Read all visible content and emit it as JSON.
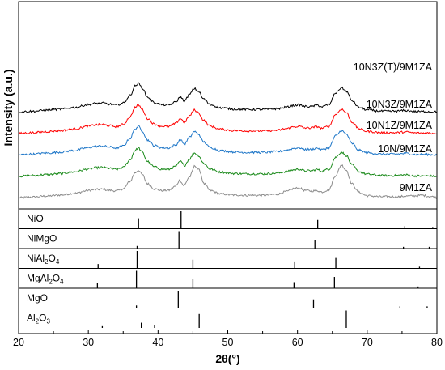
{
  "chart_data": {
    "type": "line",
    "title": "",
    "xlabel": "2θ(°)",
    "ylabel": "Intensity (a.u.)",
    "xlim": [
      20,
      80
    ],
    "xticks": [
      20,
      30,
      40,
      50,
      60,
      70,
      80
    ],
    "grid": false,
    "legend": "none",
    "series": [
      {
        "name": "10N3Z(T)/9M1ZA",
        "color": "#000000",
        "offset": 4,
        "points": [
          [
            20,
            0.18
          ],
          [
            22,
            0.22
          ],
          [
            24,
            0.28
          ],
          [
            26,
            0.34
          ],
          [
            28,
            0.44
          ],
          [
            30,
            0.6
          ],
          [
            31,
            0.68
          ],
          [
            32,
            0.7
          ],
          [
            33,
            0.64
          ],
          [
            34,
            0.58
          ],
          [
            35,
            0.7
          ],
          [
            36,
            1.15
          ],
          [
            36.7,
            1.7
          ],
          [
            37.2,
            1.85
          ],
          [
            37.7,
            1.6
          ],
          [
            38.5,
            1.05
          ],
          [
            39.5,
            0.72
          ],
          [
            40.5,
            0.6
          ],
          [
            41.5,
            0.58
          ],
          [
            42.5,
            0.75
          ],
          [
            43.2,
            1.05
          ],
          [
            43.8,
            0.82
          ],
          [
            44.5,
            1.2
          ],
          [
            45.2,
            1.55
          ],
          [
            45.8,
            1.4
          ],
          [
            46.5,
            0.95
          ],
          [
            47.5,
            0.6
          ],
          [
            49,
            0.42
          ],
          [
            51,
            0.34
          ],
          [
            53,
            0.32
          ],
          [
            55,
            0.32
          ],
          [
            57,
            0.36
          ],
          [
            58.5,
            0.46
          ],
          [
            59.5,
            0.56
          ],
          [
            60.2,
            0.6
          ],
          [
            61,
            0.5
          ],
          [
            62,
            0.5
          ],
          [
            62.8,
            0.58
          ],
          [
            63.5,
            0.48
          ],
          [
            64.5,
            0.6
          ],
          [
            65.5,
            1.3
          ],
          [
            66.3,
            1.6
          ],
          [
            67,
            1.4
          ],
          [
            67.8,
            0.85
          ],
          [
            68.8,
            0.45
          ],
          [
            70,
            0.3
          ],
          [
            72,
            0.22
          ],
          [
            74,
            0.22
          ],
          [
            75.5,
            0.26
          ],
          [
            77,
            0.2
          ],
          [
            78.5,
            0.2
          ],
          [
            80,
            0.18
          ]
        ]
      },
      {
        "name": "10N3Z/9M1ZA",
        "color": "#ff0000",
        "offset": 3,
        "points": [
          [
            20,
            0.18
          ],
          [
            22,
            0.22
          ],
          [
            24,
            0.28
          ],
          [
            26,
            0.34
          ],
          [
            28,
            0.44
          ],
          [
            30,
            0.6
          ],
          [
            31,
            0.68
          ],
          [
            32,
            0.7
          ],
          [
            33,
            0.64
          ],
          [
            34,
            0.58
          ],
          [
            35,
            0.7
          ],
          [
            36,
            1.15
          ],
          [
            36.7,
            1.7
          ],
          [
            37.2,
            1.85
          ],
          [
            37.7,
            1.6
          ],
          [
            38.5,
            1.05
          ],
          [
            39.5,
            0.72
          ],
          [
            40.5,
            0.6
          ],
          [
            41.5,
            0.58
          ],
          [
            42.5,
            0.75
          ],
          [
            43.2,
            1.05
          ],
          [
            43.8,
            0.82
          ],
          [
            44.5,
            1.2
          ],
          [
            45.2,
            1.55
          ],
          [
            45.8,
            1.4
          ],
          [
            46.5,
            0.95
          ],
          [
            47.5,
            0.6
          ],
          [
            49,
            0.42
          ],
          [
            51,
            0.34
          ],
          [
            53,
            0.32
          ],
          [
            55,
            0.32
          ],
          [
            57,
            0.36
          ],
          [
            58.5,
            0.46
          ],
          [
            59.5,
            0.56
          ],
          [
            60.2,
            0.6
          ],
          [
            61,
            0.5
          ],
          [
            62,
            0.5
          ],
          [
            62.8,
            0.58
          ],
          [
            63.5,
            0.48
          ],
          [
            64.5,
            0.6
          ],
          [
            65.5,
            1.3
          ],
          [
            66.3,
            1.6
          ],
          [
            67,
            1.4
          ],
          [
            67.8,
            0.85
          ],
          [
            68.8,
            0.45
          ],
          [
            70,
            0.3
          ],
          [
            72,
            0.22
          ],
          [
            74,
            0.22
          ],
          [
            75.5,
            0.26
          ],
          [
            77,
            0.2
          ],
          [
            78.5,
            0.2
          ],
          [
            80,
            0.18
          ]
        ]
      },
      {
        "name": "10N1Z/9M1ZA",
        "color": "#1f77c8",
        "offset": 2,
        "points": [
          [
            20,
            0.18
          ],
          [
            22,
            0.22
          ],
          [
            24,
            0.28
          ],
          [
            26,
            0.34
          ],
          [
            28,
            0.44
          ],
          [
            30,
            0.6
          ],
          [
            31,
            0.68
          ],
          [
            32,
            0.7
          ],
          [
            33,
            0.64
          ],
          [
            34,
            0.58
          ],
          [
            35,
            0.7
          ],
          [
            36,
            1.15
          ],
          [
            36.7,
            1.7
          ],
          [
            37.2,
            1.85
          ],
          [
            37.7,
            1.6
          ],
          [
            38.5,
            1.05
          ],
          [
            39.5,
            0.72
          ],
          [
            40.5,
            0.6
          ],
          [
            41.5,
            0.58
          ],
          [
            42.5,
            0.75
          ],
          [
            43.2,
            1.05
          ],
          [
            43.8,
            0.82
          ],
          [
            44.5,
            1.2
          ],
          [
            45.2,
            1.55
          ],
          [
            45.8,
            1.4
          ],
          [
            46.5,
            0.95
          ],
          [
            47.5,
            0.6
          ],
          [
            49,
            0.42
          ],
          [
            51,
            0.34
          ],
          [
            53,
            0.32
          ],
          [
            55,
            0.32
          ],
          [
            57,
            0.36
          ],
          [
            58.5,
            0.46
          ],
          [
            59.5,
            0.56
          ],
          [
            60.2,
            0.6
          ],
          [
            61,
            0.5
          ],
          [
            62,
            0.5
          ],
          [
            62.8,
            0.58
          ],
          [
            63.5,
            0.48
          ],
          [
            64.5,
            0.6
          ],
          [
            65.5,
            1.3
          ],
          [
            66.3,
            1.6
          ],
          [
            67,
            1.4
          ],
          [
            67.8,
            0.85
          ],
          [
            68.8,
            0.45
          ],
          [
            70,
            0.3
          ],
          [
            72,
            0.22
          ],
          [
            74,
            0.22
          ],
          [
            75.5,
            0.26
          ],
          [
            77,
            0.2
          ],
          [
            78.5,
            0.2
          ],
          [
            80,
            0.18
          ]
        ]
      },
      {
        "name": "10N/9M1ZA",
        "color": "#1a8a1a",
        "offset": 1,
        "points": [
          [
            20,
            0.18
          ],
          [
            22,
            0.22
          ],
          [
            24,
            0.28
          ],
          [
            26,
            0.34
          ],
          [
            28,
            0.44
          ],
          [
            30,
            0.6
          ],
          [
            31,
            0.68
          ],
          [
            32,
            0.7
          ],
          [
            33,
            0.64
          ],
          [
            34,
            0.58
          ],
          [
            35,
            0.7
          ],
          [
            36,
            1.15
          ],
          [
            36.7,
            1.7
          ],
          [
            37.2,
            1.85
          ],
          [
            37.7,
            1.6
          ],
          [
            38.5,
            1.05
          ],
          [
            39.5,
            0.72
          ],
          [
            40.5,
            0.6
          ],
          [
            41.5,
            0.58
          ],
          [
            42.5,
            0.75
          ],
          [
            43.2,
            1.05
          ],
          [
            43.8,
            0.82
          ],
          [
            44.5,
            1.2
          ],
          [
            45.2,
            1.55
          ],
          [
            45.8,
            1.4
          ],
          [
            46.5,
            0.95
          ],
          [
            47.5,
            0.6
          ],
          [
            49,
            0.42
          ],
          [
            51,
            0.34
          ],
          [
            53,
            0.32
          ],
          [
            55,
            0.32
          ],
          [
            57,
            0.36
          ],
          [
            58.5,
            0.46
          ],
          [
            59.5,
            0.56
          ],
          [
            60.2,
            0.6
          ],
          [
            61,
            0.5
          ],
          [
            62,
            0.5
          ],
          [
            62.8,
            0.58
          ],
          [
            63.5,
            0.48
          ],
          [
            64.5,
            0.6
          ],
          [
            65.5,
            1.3
          ],
          [
            66.3,
            1.6
          ],
          [
            67,
            1.4
          ],
          [
            67.8,
            0.85
          ],
          [
            68.8,
            0.45
          ],
          [
            70,
            0.3
          ],
          [
            72,
            0.22
          ],
          [
            74,
            0.22
          ],
          [
            75.5,
            0.26
          ],
          [
            77,
            0.2
          ],
          [
            78.5,
            0.2
          ],
          [
            80,
            0.18
          ]
        ]
      },
      {
        "name": "9M1ZA",
        "color": "#8c8c8c",
        "offset": 0,
        "points": [
          [
            20,
            0.18
          ],
          [
            22,
            0.22
          ],
          [
            24,
            0.28
          ],
          [
            26,
            0.34
          ],
          [
            28,
            0.44
          ],
          [
            30,
            0.6
          ],
          [
            31,
            0.66
          ],
          [
            32,
            0.68
          ],
          [
            33,
            0.62
          ],
          [
            34,
            0.58
          ],
          [
            35,
            0.7
          ],
          [
            36,
            1.15
          ],
          [
            36.7,
            1.65
          ],
          [
            37.2,
            1.8
          ],
          [
            37.7,
            1.55
          ],
          [
            38.5,
            1.0
          ],
          [
            39.5,
            0.7
          ],
          [
            40.5,
            0.6
          ],
          [
            41.5,
            0.62
          ],
          [
            42.5,
            0.85
          ],
          [
            43.1,
            1.2
          ],
          [
            43.7,
            0.9
          ],
          [
            44.5,
            1.4
          ],
          [
            45.3,
            2.05
          ],
          [
            45.9,
            1.8
          ],
          [
            46.6,
            1.0
          ],
          [
            47.5,
            0.6
          ],
          [
            49,
            0.4
          ],
          [
            51,
            0.34
          ],
          [
            53,
            0.32
          ],
          [
            55,
            0.32
          ],
          [
            57,
            0.38
          ],
          [
            58.5,
            0.55
          ],
          [
            59.5,
            0.72
          ],
          [
            60.2,
            0.76
          ],
          [
            61,
            0.62
          ],
          [
            62,
            0.58
          ],
          [
            62.8,
            0.6
          ],
          [
            63.5,
            0.52
          ],
          [
            64.5,
            0.65
          ],
          [
            65.5,
            1.5
          ],
          [
            66.3,
            2.1
          ],
          [
            67,
            1.8
          ],
          [
            67.8,
            1.0
          ],
          [
            68.8,
            0.5
          ],
          [
            70,
            0.3
          ],
          [
            72,
            0.24
          ],
          [
            74,
            0.24
          ],
          [
            76,
            0.28
          ],
          [
            78,
            0.32
          ],
          [
            79,
            0.26
          ],
          [
            80,
            0.2
          ]
        ]
      }
    ],
    "reference_patterns": [
      {
        "name": "NiO",
        "label_main": "NiO",
        "label_sub": "",
        "label_tail": "",
        "peaks": [
          [
            37.2,
            0.6
          ],
          [
            43.3,
            1.0
          ],
          [
            62.9,
            0.5
          ],
          [
            75.4,
            0.15
          ],
          [
            79.4,
            0.1
          ]
        ]
      },
      {
        "name": "NiMgO",
        "label_main": "NiMgO",
        "label_sub": "",
        "label_tail": "",
        "peaks": [
          [
            37.0,
            0.15
          ],
          [
            43.0,
            1.0
          ],
          [
            62.5,
            0.5
          ],
          [
            75.2,
            0.1
          ],
          [
            78.9,
            0.1
          ]
        ]
      },
      {
        "name": "NiAl2O4",
        "label_main": "NiAl",
        "label_sub": "2",
        "label_tail": "O",
        "label_sub2": "4",
        "peaks": [
          [
            31.4,
            0.25
          ],
          [
            37.0,
            1.0
          ],
          [
            45.0,
            0.5
          ],
          [
            59.6,
            0.4
          ],
          [
            65.5,
            0.6
          ],
          [
            77.5,
            0.1
          ]
        ]
      },
      {
        "name": "MgAl2O4",
        "label_main": "MgAl",
        "label_sub": "2",
        "label_tail": "O",
        "label_sub2": "4",
        "peaks": [
          [
            31.3,
            0.3
          ],
          [
            36.9,
            1.0
          ],
          [
            45.0,
            0.55
          ],
          [
            59.5,
            0.35
          ],
          [
            65.3,
            0.65
          ],
          [
            77.3,
            0.1
          ]
        ]
      },
      {
        "name": "MgO",
        "label_main": "MgO",
        "label_sub": "",
        "label_tail": "",
        "peaks": [
          [
            36.9,
            0.15
          ],
          [
            42.9,
            1.0
          ],
          [
            62.3,
            0.5
          ],
          [
            74.7,
            0.1
          ],
          [
            78.6,
            0.1
          ]
        ]
      },
      {
        "name": "Al2O3",
        "label_main": "Al",
        "label_sub": "2",
        "label_tail": "O",
        "label_sub2": "3",
        "peaks": [
          [
            32.0,
            0.1
          ],
          [
            37.6,
            0.3
          ],
          [
            39.5,
            0.15
          ],
          [
            45.9,
            0.8
          ],
          [
            67.0,
            1.0
          ]
        ]
      }
    ]
  }
}
